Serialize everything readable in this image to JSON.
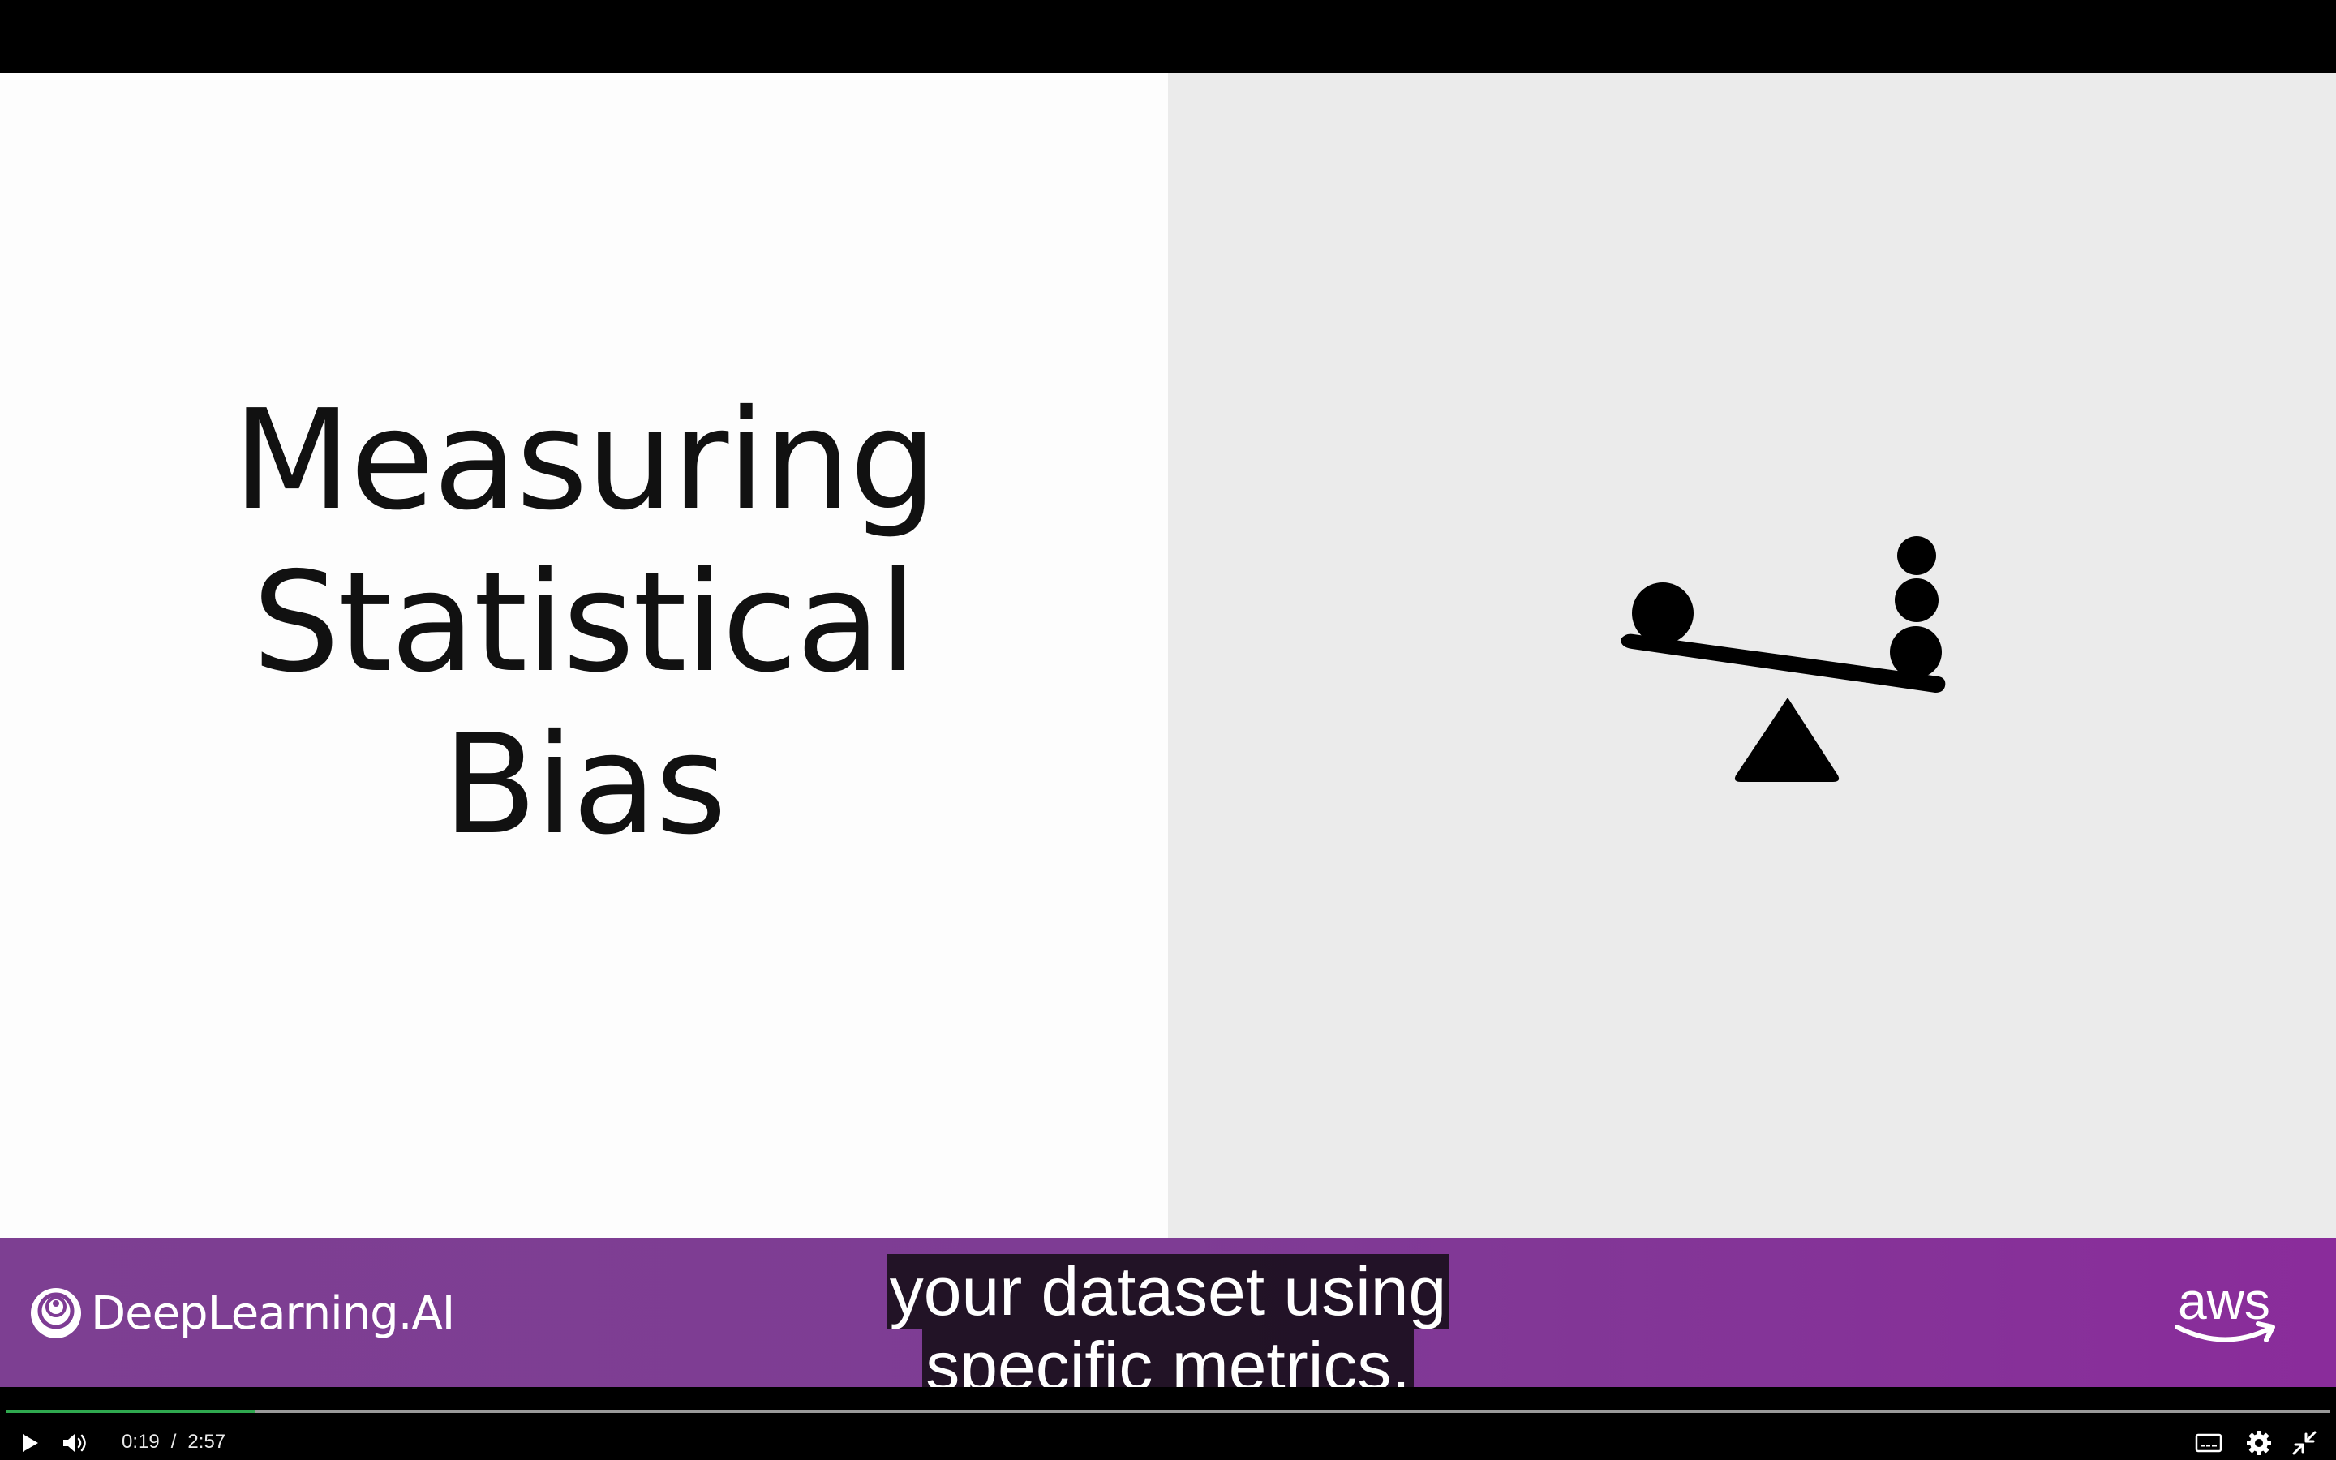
{
  "slide": {
    "title_lines": [
      "Measuring",
      "Statistical",
      "Bias"
    ],
    "illustration": "seesaw-balance-icon"
  },
  "banner": {
    "left_logo_text": "DeepLearning.AI",
    "right_logo_text": "aws",
    "color": "#7e3c94"
  },
  "captions": {
    "lines": [
      "your dataset using",
      "specific metrics."
    ]
  },
  "player": {
    "current_time": "0:19",
    "time_separator": "/",
    "duration": "2:57",
    "progress_fraction": 0.107,
    "progress_color": "#2fa84f",
    "icons": {
      "play": "play-icon",
      "volume": "volume-icon",
      "captions": "captions-icon",
      "settings": "gear-icon",
      "exit_fullscreen": "exit-fullscreen-icon"
    }
  }
}
